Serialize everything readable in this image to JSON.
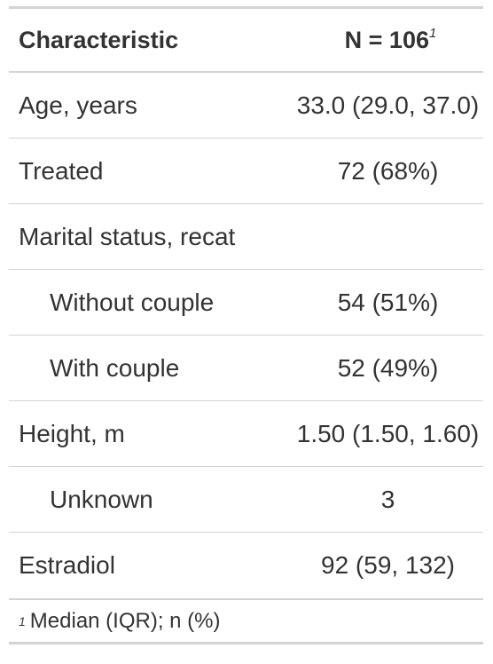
{
  "header": {
    "characteristic": "Characteristic",
    "n_label": "N = 106",
    "n_footnote_mark": "1"
  },
  "rows": [
    {
      "label": "Age, years",
      "value": "33.0 (29.0, 37.0)"
    },
    {
      "label": "Treated",
      "value": "72 (68%)"
    },
    {
      "label": "Marital status, recat",
      "value": ""
    },
    {
      "label": "Without couple",
      "value": "54 (51%)"
    },
    {
      "label": "With couple",
      "value": "52 (49%)"
    },
    {
      "label": "Height, m",
      "value": "1.50 (1.50, 1.60)"
    },
    {
      "label": "Unknown",
      "value": "3"
    },
    {
      "label": "Estradiol",
      "value": "92 (59, 132)"
    }
  ],
  "footnote": {
    "mark": "1",
    "text": "Median (IQR); n (%)"
  }
}
